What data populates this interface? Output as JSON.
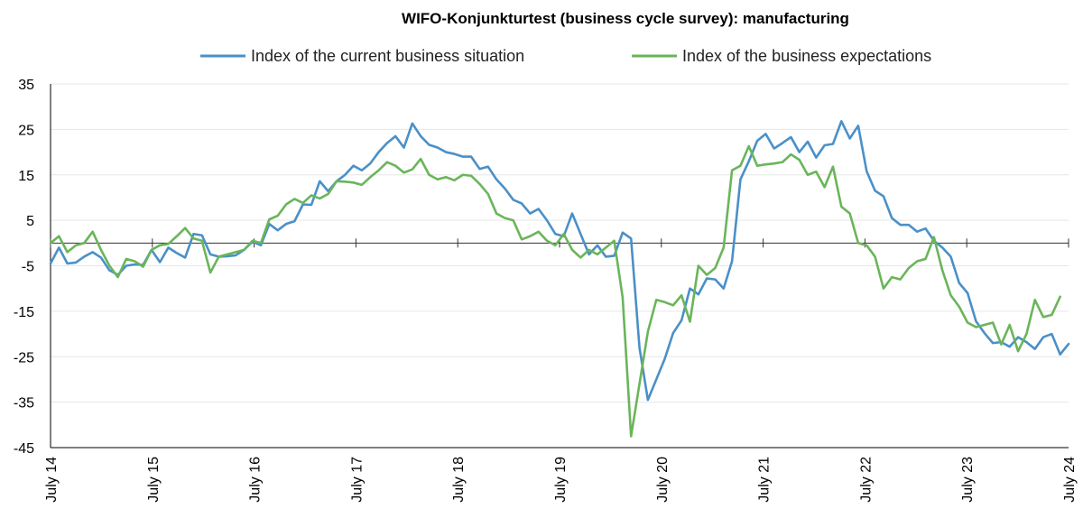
{
  "chart_data": {
    "type": "line",
    "title": "WIFO-Konjunkturtest (business cycle survey): manufacturing",
    "xlabel": "",
    "ylabel": "",
    "ylim": [
      -45,
      35
    ],
    "yticks": [
      35,
      25,
      15,
      5,
      -5,
      -15,
      -25,
      -35,
      -45
    ],
    "x_tick_labels": [
      "July 14",
      "July 15",
      "July 16",
      "July 17",
      "July 18",
      "July 19",
      "July 20",
      "July 21",
      "July 22",
      "July 23",
      "July 24"
    ],
    "x_start": "2014-07",
    "x_end": "2024-07",
    "grid": "horizontal",
    "legend_position": "top",
    "series": [
      {
        "name": "Index of the current business situation",
        "color": "#4a90c8",
        "values": [
          -4.5,
          -1,
          -4.5,
          -4.3,
          -3,
          -2,
          -3.2,
          -6,
          -7,
          -5,
          -4.7,
          -4.8,
          -1.5,
          -4.2,
          -1,
          -2.2,
          -3.2,
          2,
          1.7,
          -2.5,
          -3,
          -2.9,
          -2.7,
          -1.5,
          0.3,
          -0.5,
          4.2,
          2.8,
          4.2,
          4.8,
          8.5,
          8.4,
          13.6,
          11.4,
          13.6,
          15,
          17,
          16,
          17.5,
          20,
          22,
          23.5,
          21,
          26.3,
          23.5,
          21.6,
          21,
          20,
          19.6,
          19,
          19,
          16.3,
          16.8,
          14,
          12,
          9.5,
          8.7,
          6.5,
          7.5,
          5,
          2,
          1.5,
          6.5,
          2,
          -2.5,
          -0.5,
          -3,
          -2.8,
          2.3,
          1,
          -23,
          -34.5,
          -30,
          -25.5,
          -19.8,
          -17,
          -10,
          -11.3,
          -7.8,
          -8,
          -10,
          -4,
          14,
          18,
          22.5,
          24,
          20.8,
          22,
          23.3,
          20,
          22.3,
          18.8,
          21.5,
          21.8,
          26.8,
          23,
          25.8,
          15.8,
          11.5,
          10.3,
          5.5,
          4,
          4,
          2.5,
          3.2,
          0.5,
          -1,
          -3,
          -8.8,
          -11,
          -17.2,
          -19.8,
          -22,
          -21.8,
          -22.8,
          -20.7,
          -21.8,
          -23.3,
          -20.7,
          -20,
          -24.5,
          -22.2
        ]
      },
      {
        "name": "Index of the business expectations",
        "color": "#6ab55a",
        "values": [
          0,
          1.5,
          -2,
          -0.5,
          0,
          2.5,
          -1.5,
          -5,
          -7.5,
          -3.5,
          -4,
          -5.2,
          -1.5,
          -0.5,
          -0.2,
          1.5,
          3.3,
          1,
          0.5,
          -6.5,
          -3,
          -2.5,
          -2,
          -1.5,
          0.5,
          0,
          5.2,
          6,
          8.5,
          9.7,
          8.8,
          10.5,
          9.8,
          10.8,
          13.6,
          13.5,
          13.3,
          12.8,
          14.5,
          16,
          17.8,
          17,
          15.5,
          16.2,
          18.5,
          15,
          14,
          14.5,
          13.8,
          15,
          14.8,
          13,
          10.8,
          6.5,
          5.5,
          5,
          0.8,
          1.5,
          2.5,
          0.5,
          -0.5,
          2,
          -1.5,
          -3.2,
          -1.5,
          -2.5,
          -1,
          0.5,
          -12,
          -42.5,
          -31,
          -19.5,
          -12.5,
          -13,
          -13.7,
          -11.5,
          -17.3,
          -5,
          -7,
          -5.5,
          -1,
          16,
          17,
          21.3,
          17,
          17.3,
          17.5,
          17.8,
          19.5,
          18.3,
          15,
          15.7,
          12.3,
          16.8,
          8,
          6.5,
          0,
          -0.5,
          -3,
          -10,
          -7.5,
          -8,
          -5.5,
          -4,
          -3.5,
          1.3,
          -6,
          -11.5,
          -14,
          -17.5,
          -18.5,
          -18,
          -17.5,
          -22.3,
          -18,
          -23.8,
          -20,
          -12.5,
          -16.3,
          -15.8,
          -11.8
        ]
      }
    ]
  }
}
